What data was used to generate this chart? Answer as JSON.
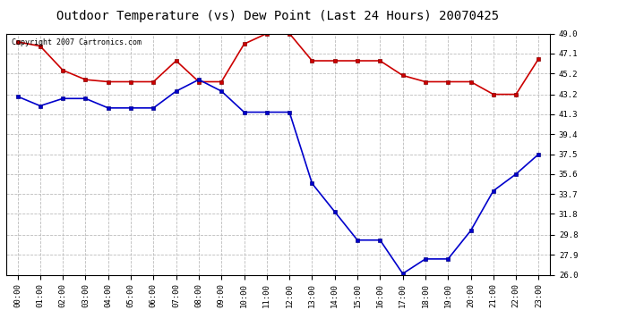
{
  "title": "Outdoor Temperature (vs) Dew Point (Last 24 Hours) 20070425",
  "copyright_text": "Copyright 2007 Cartronics.com",
  "x_labels": [
    "00:00",
    "01:00",
    "02:00",
    "03:00",
    "04:00",
    "05:00",
    "06:00",
    "07:00",
    "08:00",
    "09:00",
    "10:00",
    "11:00",
    "12:00",
    "13:00",
    "14:00",
    "15:00",
    "16:00",
    "17:00",
    "18:00",
    "19:00",
    "20:00",
    "21:00",
    "22:00",
    "23:00"
  ],
  "temp_data": [
    48.2,
    47.8,
    45.5,
    44.6,
    44.4,
    44.4,
    44.4,
    46.4,
    44.4,
    44.4,
    48.0,
    49.0,
    49.0,
    46.4,
    46.4,
    46.4,
    46.4,
    45.0,
    44.4,
    44.4,
    44.4,
    43.2,
    43.2,
    46.6
  ],
  "dew_data": [
    43.0,
    42.1,
    42.8,
    42.8,
    41.9,
    41.9,
    41.9,
    43.5,
    44.6,
    43.5,
    41.5,
    41.5,
    41.5,
    34.7,
    32.0,
    29.3,
    29.3,
    26.1,
    27.5,
    27.5,
    30.2,
    34.0,
    35.6,
    37.5
  ],
  "temp_color": "#cc0000",
  "dew_color": "#0000cc",
  "background_color": "#ffffff",
  "plot_bg_color": "#ffffff",
  "grid_color": "#bbbbbb",
  "ylim_min": 26.0,
  "ylim_max": 49.0,
  "yticks": [
    26.0,
    27.9,
    29.8,
    31.8,
    33.7,
    35.6,
    37.5,
    39.4,
    41.3,
    43.2,
    45.2,
    47.1,
    49.0
  ],
  "marker": "s",
  "marker_size": 3,
  "linewidth": 1.2,
  "title_fontsize": 10,
  "tick_fontsize": 6.5
}
